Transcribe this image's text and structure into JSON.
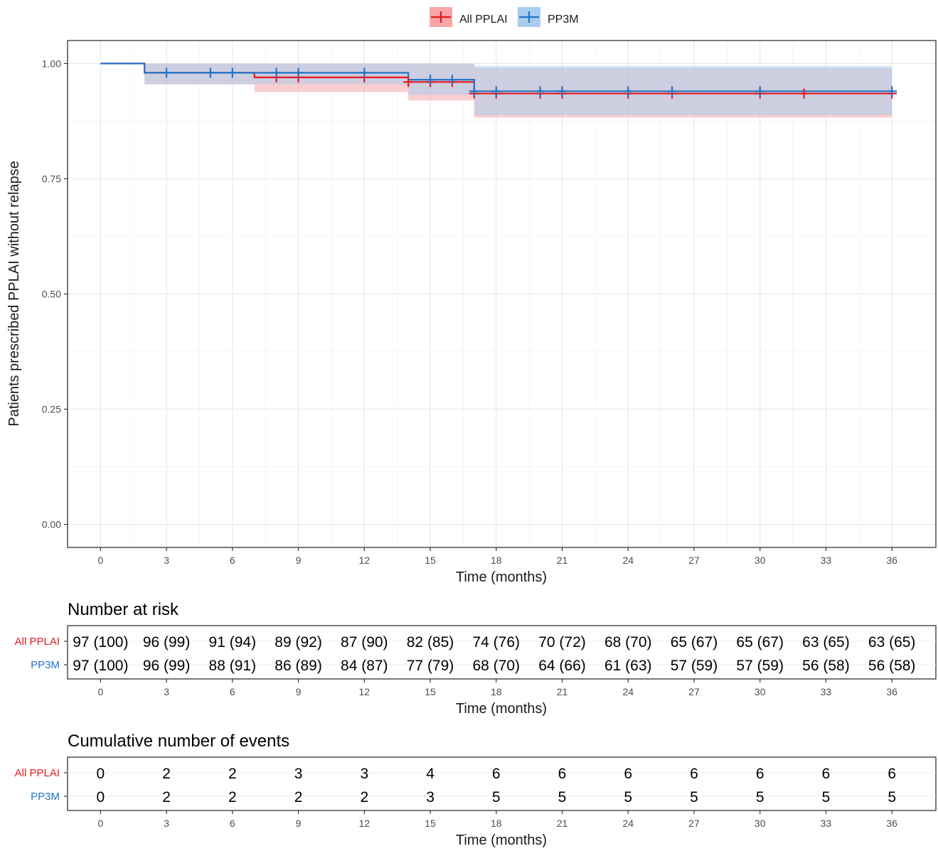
{
  "chart_data": {
    "type": "line",
    "subtype": "kaplan-meier survival curve",
    "xlabel": "Time (months)",
    "ylabel": "Patients prescribed PPLAI without relapse",
    "xlim": [
      -1.5,
      38
    ],
    "ylim": [
      -0.05,
      1.05
    ],
    "x_ticks": [
      0,
      3,
      6,
      9,
      12,
      15,
      18,
      21,
      24,
      27,
      30,
      33,
      36
    ],
    "x_tick_labels": [
      "0",
      "3",
      "6",
      "9",
      "12",
      "15",
      "18",
      "21",
      "24",
      "27",
      "30",
      "33",
      "36"
    ],
    "y_ticks": [
      0,
      0.25,
      0.5,
      0.75,
      1.0
    ],
    "y_tick_labels": [
      "0.00",
      "0.25",
      "0.50",
      "0.75",
      "1.00"
    ],
    "grid": true,
    "legend_position": "top",
    "series": [
      {
        "name": "All PPLAI",
        "color": "#e41a1c",
        "fill_color": "#f8a5a8",
        "steps": [
          {
            "x": 0,
            "y": 1.0
          },
          {
            "x": 2,
            "y": 0.98
          },
          {
            "x": 7,
            "y": 0.97
          },
          {
            "x": 14,
            "y": 0.96
          },
          {
            "x": 17,
            "y": 0.935
          }
        ],
        "end_x": 36,
        "ci": [
          {
            "x": 0,
            "lower": 1.0,
            "upper": 1.0
          },
          {
            "x": 2,
            "lower": 0.955,
            "upper": 1.0
          },
          {
            "x": 7,
            "lower": 0.938,
            "upper": 1.0
          },
          {
            "x": 14,
            "lower": 0.92,
            "upper": 1.0
          },
          {
            "x": 17,
            "lower": 0.883,
            "upper": 0.99
          }
        ],
        "censor_times": [
          8,
          9,
          12,
          14,
          15,
          16,
          17,
          18,
          20,
          21,
          24,
          26,
          30,
          32,
          36
        ]
      },
      {
        "name": "PP3M",
        "color": "#2475c7",
        "fill_color": "#a8cdee",
        "steps": [
          {
            "x": 0,
            "y": 1.0
          },
          {
            "x": 2,
            "y": 0.98
          },
          {
            "x": 14,
            "y": 0.965
          },
          {
            "x": 17,
            "y": 0.94
          }
        ],
        "end_x": 36,
        "ci": [
          {
            "x": 0,
            "lower": 1.0,
            "upper": 1.0
          },
          {
            "x": 2,
            "lower": 0.955,
            "upper": 1.0
          },
          {
            "x": 14,
            "lower": 0.932,
            "upper": 1.0
          },
          {
            "x": 17,
            "lower": 0.888,
            "upper": 0.995
          }
        ],
        "censor_times": [
          3,
          5,
          6,
          8,
          9,
          12,
          15,
          16,
          17,
          18,
          20,
          21,
          24,
          26,
          30,
          36
        ]
      }
    ],
    "tables": [
      {
        "title": "Number at risk",
        "xlabel": "Time (months)",
        "rows": [
          {
            "name": "All PPLAI",
            "values": [
              "97 (100)",
              "96 (99)",
              "91 (94)",
              "89 (92)",
              "87 (90)",
              "82 (85)",
              "74 (76)",
              "70 (72)",
              "68 (70)",
              "65 (67)",
              "65 (67)",
              "63 (65)",
              "63 (65)"
            ]
          },
          {
            "name": "PP3M",
            "values": [
              "97 (100)",
              "96 (99)",
              "88 (91)",
              "86 (89)",
              "84 (87)",
              "77 (79)",
              "68 (70)",
              "64 (66)",
              "61 (63)",
              "57 (59)",
              "57 (59)",
              "56 (58)",
              "56 (58)"
            ]
          }
        ]
      },
      {
        "title": "Cumulative number of events",
        "xlabel": "Time (months)",
        "rows": [
          {
            "name": "All PPLAI",
            "values": [
              "0",
              "2",
              "2",
              "3",
              "3",
              "4",
              "6",
              "6",
              "6",
              "6",
              "6",
              "6",
              "6"
            ]
          },
          {
            "name": "PP3M",
            "values": [
              "0",
              "2",
              "2",
              "2",
              "2",
              "3",
              "5",
              "5",
              "5",
              "5",
              "5",
              "5",
              "5"
            ]
          }
        ]
      }
    ]
  }
}
